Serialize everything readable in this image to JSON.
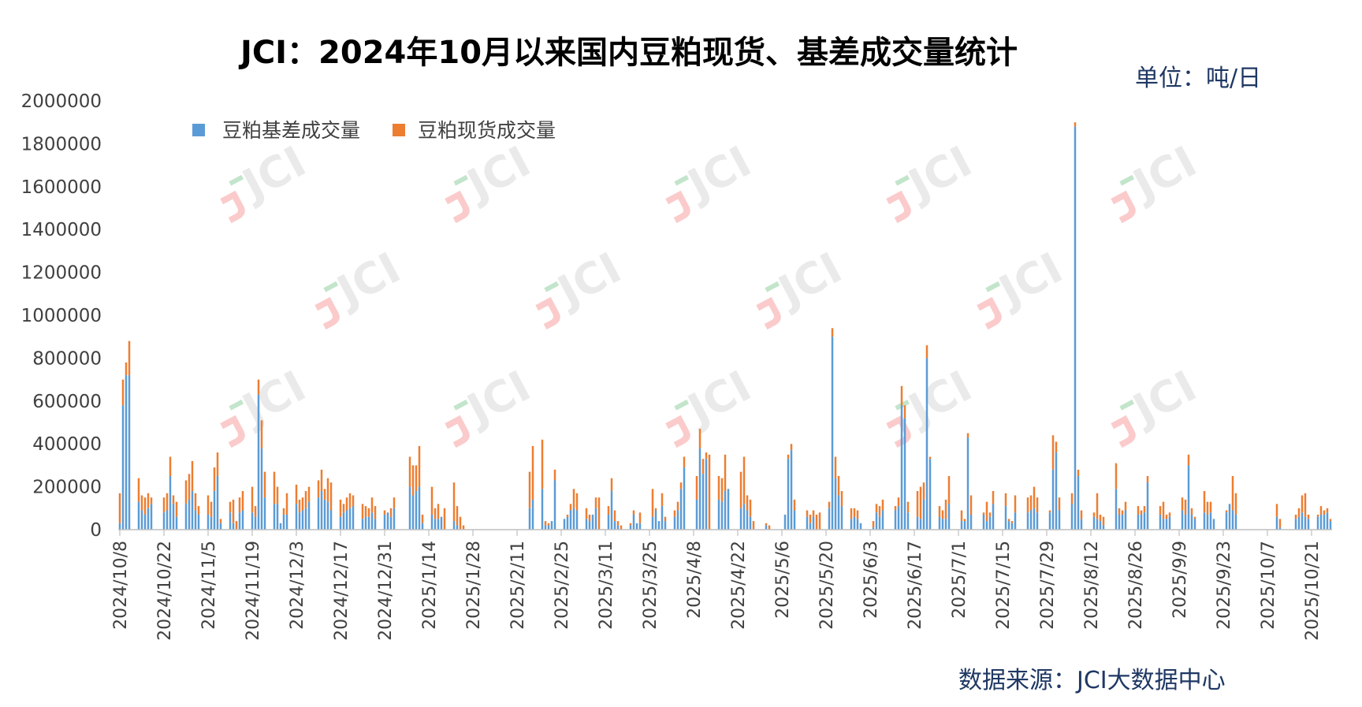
{
  "title": "JCI：2024年10月以来国内豆粕现货、基差成交量统计",
  "unit_label": "单位：吨/日",
  "source_label": "数据来源：JCI大数据中心",
  "watermark": "JCI",
  "colors": {
    "basis": "#5b9bd5",
    "spot": "#ed7d31",
    "axis": "#bfbfbf",
    "title": "#000000",
    "note": "#1f3864"
  },
  "chart_data": {
    "type": "bar",
    "stacked": true,
    "title": "JCI：2024年10月以来国内豆粕现货、基差成交量统计",
    "xlabel": "",
    "ylabel": "",
    "ylim": [
      0,
      2000000
    ],
    "yticks": [
      0,
      200000,
      400000,
      600000,
      800000,
      1000000,
      1200000,
      1400000,
      1600000,
      1800000,
      2000000
    ],
    "x_tick_labels": [
      "2024/10/8",
      "2024/10/22",
      "2024/11/5",
      "2024/11/19",
      "2024/12/3",
      "2024/12/17",
      "2024/12/31",
      "2025/1/14",
      "2025/1/28",
      "2025/2/11",
      "2025/2/25",
      "2025/3/11",
      "2025/3/25",
      "2025/4/8",
      "2025/4/22",
      "2025/5/6",
      "2025/5/20",
      "2025/6/3",
      "2025/6/17",
      "2025/7/1",
      "2025/7/15",
      "2025/7/29",
      "2025/8/12",
      "2025/8/26",
      "2025/9/9",
      "2025/9/23",
      "2025/10/7",
      "2025/10/21"
    ],
    "legend": [
      "豆粕基差成交量",
      "豆粕现货成交量"
    ],
    "legend_position": "top-left",
    "grid": false,
    "slots_per_period": 14,
    "series": [
      {
        "name": "豆粕基差成交量",
        "values": [
          30000,
          580000,
          720000,
          720000,
          0,
          0,
          130000,
          90000,
          70000,
          100000,
          120000,
          0,
          0,
          0,
          80000,
          90000,
          250000,
          120000,
          60000,
          0,
          0,
          120000,
          140000,
          180000,
          90000,
          70000,
          0,
          0,
          70000,
          60000,
          180000,
          250000,
          30000,
          0,
          0,
          80000,
          30000,
          0,
          80000,
          90000,
          0,
          0,
          80000,
          60000,
          630000,
          380000,
          150000,
          0,
          0,
          120000,
          120000,
          30000,
          70000,
          70000,
          0,
          0,
          120000,
          80000,
          90000,
          100000,
          130000,
          0,
          0,
          150000,
          180000,
          140000,
          130000,
          90000,
          0,
          0,
          60000,
          80000,
          90000,
          100000,
          110000,
          0,
          0,
          50000,
          60000,
          60000,
          80000,
          50000,
          0,
          0,
          70000,
          80000,
          60000,
          100000,
          0,
          0,
          0,
          0,
          200000,
          160000,
          180000,
          200000,
          30000,
          0,
          0,
          70000,
          50000,
          50000,
          80000,
          0,
          0,
          0,
          40000,
          20000,
          0,
          0,
          0,
          0,
          0,
          0,
          0,
          0,
          0,
          0,
          0,
          0,
          0,
          0,
          0,
          0,
          0,
          0,
          0,
          0,
          0,
          0,
          100000,
          140000,
          0,
          0,
          190000,
          20000,
          20000,
          50000,
          230000,
          0,
          0,
          50000,
          60000,
          90000,
          100000,
          90000,
          0,
          0,
          50000,
          40000,
          90000,
          100000,
          0,
          0,
          0,
          70000,
          180000,
          40000,
          20000,
          0,
          0,
          0,
          20000,
          70000,
          60000,
          30000,
          0,
          0,
          0,
          60000,
          90000,
          40000,
          110000,
          40000,
          0,
          0,
          60000,
          90000,
          190000,
          290000,
          0,
          0,
          0,
          140000,
          380000,
          260000,
          330000,
          0,
          0,
          0,
          140000,
          130000,
          180000,
          260000,
          0,
          0,
          0,
          100000,
          120000,
          90000,
          60000,
          0,
          0,
          0,
          20000,
          20000,
          0,
          0,
          0,
          0,
          0,
          70000,
          330000,
          370000,
          90000,
          0,
          0,
          0,
          60000,
          30000,
          60000,
          0,
          0,
          0,
          0,
          100000,
          900000,
          240000,
          160000,
          110000,
          0,
          0,
          50000,
          60000,
          50000,
          40000,
          0,
          0,
          0,
          10000,
          80000,
          60000,
          90000,
          0,
          0,
          0,
          90000,
          110000,
          580000,
          520000,
          80000,
          0,
          0,
          60000,
          50000,
          140000,
          800000,
          330000,
          0,
          0,
          60000,
          50000,
          50000,
          120000,
          0,
          0,
          0,
          40000,
          40000,
          430000,
          70000,
          0,
          0,
          0,
          70000,
          40000,
          60000,
          120000,
          0,
          0,
          0,
          110000,
          40000,
          30000,
          80000,
          0,
          0,
          0,
          80000,
          90000,
          100000,
          80000,
          0,
          0,
          0,
          80000,
          280000,
          360000,
          90000,
          0,
          0,
          0,
          120000,
          1880000,
          250000,
          50000,
          0,
          0,
          0,
          60000,
          50000,
          40000,
          20000,
          0,
          0,
          0,
          190000,
          70000,
          70000,
          90000,
          0,
          0,
          0,
          70000,
          70000,
          80000,
          220000,
          0,
          0,
          0,
          70000,
          50000,
          50000,
          60000,
          0,
          0,
          0,
          90000,
          70000,
          300000,
          70000,
          50000,
          0,
          0,
          80000,
          70000,
          80000,
          50000,
          0,
          0,
          0,
          80000,
          250000,
          90000,
          70000,
          0,
          0,
          0,
          0,
          0,
          0,
          0,
          0,
          0,
          0,
          0,
          0,
          60000,
          10000,
          0,
          0,
          0,
          0,
          50000,
          60000,
          80000,
          60000,
          50000,
          0,
          0,
          60000,
          70000,
          70000,
          80000,
          40000
        ],
        "total": [
          170000,
          700000,
          780000,
          880000,
          0,
          0,
          240000,
          160000,
          150000,
          170000,
          150000,
          0,
          0,
          0,
          150000,
          170000,
          340000,
          160000,
          130000,
          0,
          0,
          230000,
          260000,
          320000,
          170000,
          110000,
          0,
          0,
          160000,
          130000,
          290000,
          360000,
          50000,
          0,
          0,
          130000,
          140000,
          40000,
          150000,
          180000,
          0,
          0,
          200000,
          110000,
          700000,
          510000,
          270000,
          0,
          0,
          270000,
          200000,
          30000,
          100000,
          170000,
          0,
          0,
          210000,
          140000,
          150000,
          180000,
          200000,
          0,
          0,
          230000,
          280000,
          190000,
          240000,
          220000,
          0,
          0,
          140000,
          120000,
          150000,
          170000,
          160000,
          0,
          0,
          120000,
          110000,
          100000,
          150000,
          110000,
          0,
          0,
          90000,
          80000,
          100000,
          150000,
          0,
          0,
          0,
          0,
          340000,
          300000,
          300000,
          390000,
          70000,
          0,
          0,
          200000,
          100000,
          120000,
          60000,
          100000,
          0,
          0,
          220000,
          110000,
          60000,
          20000,
          0,
          0,
          0,
          0,
          0,
          0,
          0,
          0,
          0,
          0,
          0,
          0,
          0,
          0,
          0,
          0,
          0,
          0,
          0,
          0,
          270000,
          390000,
          0,
          0,
          420000,
          40000,
          30000,
          40000,
          280000,
          0,
          0,
          50000,
          70000,
          120000,
          190000,
          170000,
          0,
          0,
          100000,
          70000,
          70000,
          150000,
          150000,
          0,
          0,
          110000,
          240000,
          90000,
          40000,
          20000,
          0,
          0,
          30000,
          90000,
          30000,
          80000,
          0,
          0,
          0,
          190000,
          100000,
          40000,
          170000,
          60000,
          0,
          0,
          90000,
          130000,
          220000,
          340000,
          0,
          0,
          0,
          250000,
          470000,
          330000,
          360000,
          350000,
          0,
          0,
          250000,
          240000,
          350000,
          190000,
          0,
          0,
          0,
          270000,
          340000,
          160000,
          140000,
          40000,
          0,
          0,
          0,
          30000,
          20000,
          0,
          0,
          0,
          0,
          70000,
          350000,
          400000,
          140000,
          0,
          0,
          0,
          90000,
          70000,
          90000,
          70000,
          80000,
          0,
          0,
          130000,
          940000,
          340000,
          250000,
          180000,
          0,
          0,
          100000,
          100000,
          90000,
          30000,
          0,
          0,
          0,
          40000,
          120000,
          110000,
          140000,
          0,
          0,
          0,
          110000,
          150000,
          670000,
          580000,
          130000,
          0,
          0,
          180000,
          200000,
          220000,
          860000,
          340000,
          0,
          0,
          110000,
          90000,
          140000,
          250000,
          0,
          0,
          0,
          90000,
          50000,
          450000,
          160000,
          0,
          0,
          0,
          80000,
          130000,
          80000,
          180000,
          0,
          0,
          0,
          170000,
          50000,
          40000,
          160000,
          0,
          0,
          0,
          150000,
          160000,
          200000,
          150000,
          0,
          0,
          0,
          90000,
          440000,
          410000,
          150000,
          0,
          0,
          0,
          170000,
          1900000,
          280000,
          90000,
          0,
          0,
          0,
          80000,
          170000,
          70000,
          60000,
          0,
          0,
          0,
          310000,
          100000,
          90000,
          130000,
          0,
          0,
          0,
          110000,
          90000,
          110000,
          250000,
          0,
          0,
          0,
          110000,
          130000,
          70000,
          80000,
          0,
          0,
          0,
          150000,
          140000,
          350000,
          100000,
          60000,
          0,
          0,
          180000,
          130000,
          130000,
          50000,
          0,
          0,
          0,
          90000,
          120000,
          250000,
          170000,
          0,
          0,
          0,
          0,
          0,
          0,
          0,
          0,
          0,
          0,
          0,
          0,
          120000,
          50000,
          0,
          0,
          0,
          0,
          70000,
          100000,
          160000,
          170000,
          70000,
          0,
          0,
          70000,
          110000,
          90000,
          100000,
          50000
        ]
      }
    ]
  }
}
